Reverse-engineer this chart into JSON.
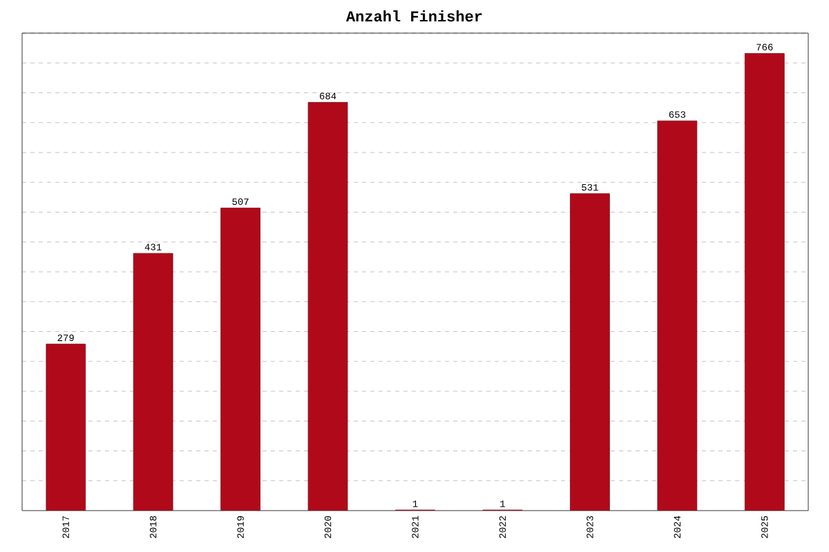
{
  "chart_data": {
    "type": "bar",
    "title": "Anzahl Finisher",
    "categories": [
      "2017",
      "2018",
      "2019",
      "2020",
      "2021",
      "2022",
      "2023",
      "2024",
      "2025"
    ],
    "values": [
      279,
      431,
      507,
      684,
      1,
      1,
      531,
      653,
      766
    ],
    "color": "#b00a1a",
    "data_labels": true,
    "grid": "y",
    "tick_labels": "x",
    "ylim": [
      0,
      800
    ],
    "yticks": [
      {
        "value": 50,
        "label": null
      },
      {
        "value": 100,
        "label": null
      },
      {
        "value": 150,
        "label": null
      },
      {
        "value": 200,
        "label": null
      },
      {
        "value": 250,
        "label": null
      },
      {
        "value": 300,
        "label": null
      },
      {
        "value": 350,
        "label": null
      },
      {
        "value": 400,
        "label": null
      },
      {
        "value": 450,
        "label": null
      },
      {
        "value": 500,
        "label": null
      },
      {
        "value": 550,
        "label": null
      },
      {
        "value": 600,
        "label": null
      },
      {
        "value": 650,
        "label": null
      },
      {
        "value": 700,
        "label": null
      },
      {
        "value": 750,
        "label": null
      },
      {
        "value": 800,
        "label": null
      }
    ]
  }
}
